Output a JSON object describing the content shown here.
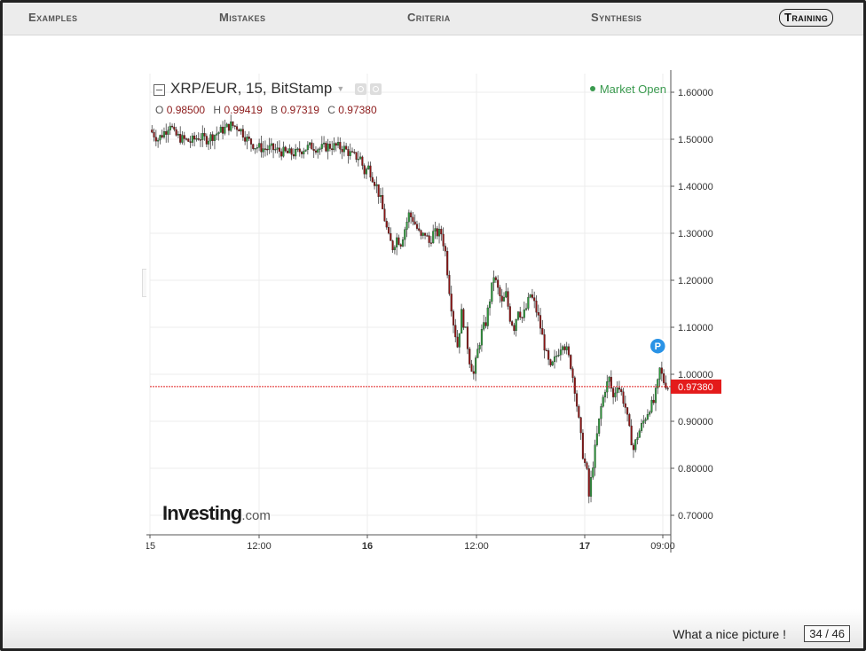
{
  "nav": {
    "items": [
      {
        "label": "Examples"
      },
      {
        "label": "Mistakes"
      },
      {
        "label": "Criteria"
      },
      {
        "label": "Synthesis"
      },
      {
        "label": "Training",
        "active": true
      }
    ]
  },
  "chart": {
    "symbol": "XRP/EUR, 15, BitStamp",
    "ohlc": {
      "o_label": "O",
      "o": "0.98500",
      "h_label": "H",
      "h": "0.99419",
      "b_label": "B",
      "b": "0.97319",
      "c_label": "C",
      "c": "0.97380"
    },
    "market_status": "Market Open",
    "watermark": "Investing",
    "watermark_suffix": ".com",
    "marker_label": "P",
    "colors": {
      "up": "#2e9a3c",
      "down": "#8c1414",
      "price_line": "#e02020",
      "price_tag": "#e41b1b",
      "marker": "#2a93e6",
      "grid": "#ececec"
    }
  },
  "chart_data": {
    "type": "candlestick",
    "y_ticks": [
      "1.60000",
      "1.50000",
      "1.40000",
      "1.30000",
      "1.20000",
      "1.10000",
      "1.00000",
      "0.90000",
      "0.80000",
      "0.70000"
    ],
    "ylim": [
      0.66,
      1.64
    ],
    "x_ticks": [
      "15",
      "12:00",
      "16",
      "12:00",
      "17",
      "09:00"
    ],
    "current_price": 0.9738,
    "current_price_label": "0.97380",
    "close_path": [
      [
        0,
        1.52
      ],
      [
        4,
        1.5
      ],
      [
        8,
        1.52
      ],
      [
        10,
        1.535
      ],
      [
        12,
        1.51
      ],
      [
        16,
        1.5
      ],
      [
        20,
        1.495
      ],
      [
        24,
        1.505
      ],
      [
        28,
        1.5
      ],
      [
        32,
        1.51
      ],
      [
        36,
        1.52
      ],
      [
        40,
        1.53
      ],
      [
        44,
        1.525
      ],
      [
        48,
        1.5
      ],
      [
        52,
        1.485
      ],
      [
        56,
        1.48
      ],
      [
        60,
        1.48
      ],
      [
        64,
        1.475
      ],
      [
        68,
        1.47
      ],
      [
        72,
        1.47
      ],
      [
        76,
        1.48
      ],
      [
        80,
        1.485
      ],
      [
        84,
        1.48
      ],
      [
        88,
        1.485
      ],
      [
        92,
        1.485
      ],
      [
        96,
        1.48
      ],
      [
        100,
        1.465
      ],
      [
        104,
        1.46
      ],
      [
        106,
        1.43
      ],
      [
        108,
        1.44
      ],
      [
        110,
        1.42
      ],
      [
        112,
        1.4
      ],
      [
        114,
        1.37
      ],
      [
        116,
        1.33
      ],
      [
        118,
        1.29
      ],
      [
        120,
        1.27
      ],
      [
        122,
        1.29
      ],
      [
        124,
        1.28
      ],
      [
        126,
        1.31
      ],
      [
        128,
        1.34
      ],
      [
        130,
        1.33
      ],
      [
        132,
        1.31
      ],
      [
        134,
        1.29
      ],
      [
        136,
        1.3
      ],
      [
        138,
        1.28
      ],
      [
        140,
        1.3
      ],
      [
        142,
        1.3
      ],
      [
        144,
        1.3
      ],
      [
        146,
        1.26
      ],
      [
        148,
        1.18
      ],
      [
        150,
        1.11
      ],
      [
        152,
        1.06
      ],
      [
        154,
        1.13
      ],
      [
        156,
        1.09
      ],
      [
        158,
        1.03
      ],
      [
        160,
        1.0
      ],
      [
        162,
        1.05
      ],
      [
        164,
        1.09
      ],
      [
        166,
        1.11
      ],
      [
        168,
        1.16
      ],
      [
        170,
        1.21
      ],
      [
        172,
        1.18
      ],
      [
        174,
        1.15
      ],
      [
        176,
        1.17
      ],
      [
        178,
        1.12
      ],
      [
        180,
        1.1
      ],
      [
        182,
        1.14
      ],
      [
        184,
        1.12
      ],
      [
        186,
        1.14
      ],
      [
        188,
        1.17
      ],
      [
        190,
        1.15
      ],
      [
        192,
        1.12
      ],
      [
        194,
        1.08
      ],
      [
        196,
        1.04
      ],
      [
        198,
        1.01
      ],
      [
        200,
        1.03
      ],
      [
        202,
        1.05
      ],
      [
        204,
        1.07
      ],
      [
        206,
        1.05
      ],
      [
        208,
        1.02
      ],
      [
        210,
        0.97
      ],
      [
        212,
        0.9
      ],
      [
        214,
        0.83
      ],
      [
        216,
        0.79
      ],
      [
        217,
        0.74
      ],
      [
        219,
        0.81
      ],
      [
        221,
        0.87
      ],
      [
        223,
        0.93
      ],
      [
        225,
        0.97
      ],
      [
        227,
        0.99
      ],
      [
        229,
        0.95
      ],
      [
        231,
        0.98
      ],
      [
        233,
        0.96
      ],
      [
        235,
        0.93
      ],
      [
        237,
        0.88
      ],
      [
        239,
        0.84
      ],
      [
        241,
        0.87
      ],
      [
        243,
        0.89
      ],
      [
        245,
        0.91
      ],
      [
        247,
        0.93
      ],
      [
        249,
        0.94
      ],
      [
        251,
        0.98
      ],
      [
        252,
        1.01
      ],
      [
        254,
        0.985
      ],
      [
        256,
        0.974
      ]
    ],
    "last_marker": {
      "x": 251,
      "y": 1.06
    }
  },
  "footer": {
    "caption": "What a nice picture !",
    "page": "34 / 46"
  }
}
